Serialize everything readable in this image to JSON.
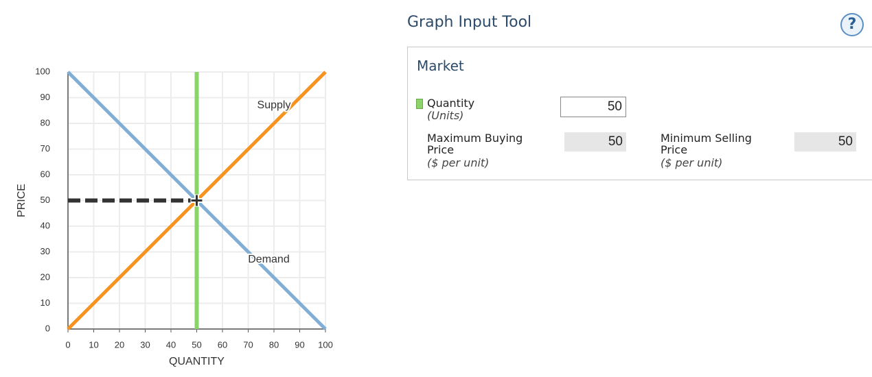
{
  "chart_data": {
    "type": "line",
    "xlabel": "QUANTITY",
    "ylabel": "PRICE",
    "xlim": [
      0,
      100
    ],
    "ylim": [
      0,
      100
    ],
    "xticks": [
      0,
      10,
      20,
      30,
      40,
      50,
      60,
      70,
      80,
      90,
      100
    ],
    "yticks": [
      0,
      10,
      20,
      30,
      40,
      50,
      60,
      70,
      80,
      90,
      100
    ],
    "grid": true,
    "series": [
      {
        "name": "Demand",
        "color": "#80aed4",
        "x": [
          0,
          100
        ],
        "values": [
          100,
          0
        ]
      },
      {
        "name": "Supply",
        "color": "#f7931e",
        "x": [
          0,
          100
        ],
        "values": [
          0,
          100
        ]
      }
    ],
    "quantity_line": {
      "x": 50,
      "color": "#8cd36a"
    },
    "equilibrium": {
      "x": 50,
      "y": 50
    }
  },
  "tool": {
    "title": "Graph Input Tool",
    "help": "?",
    "section": "Market",
    "quantity": {
      "label": "Quantity",
      "unit": "(Units)",
      "value": 50
    },
    "max_buying_price": {
      "label": "Maximum Buying Price",
      "unit": "($ per unit)",
      "value": 50
    },
    "min_selling_price": {
      "label": "Minimum Selling Price",
      "unit": "($ per unit)",
      "value": 50
    }
  }
}
